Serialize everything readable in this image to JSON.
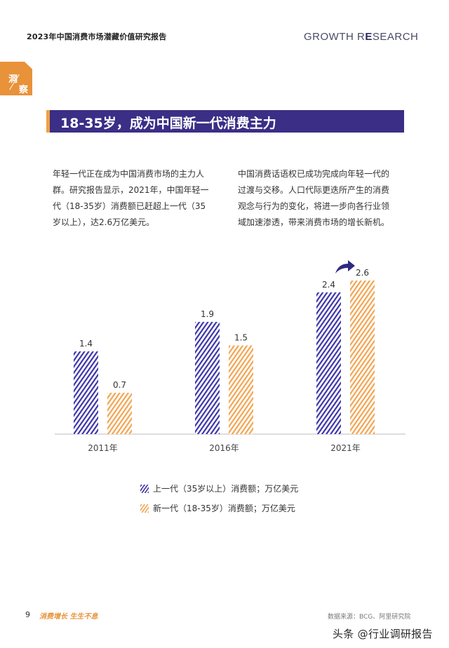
{
  "header": {
    "report_title": "2023年中国消费市场潜藏价值研究报告",
    "brand_part1": "GROWTH R",
    "brand_part2": "E",
    "brand_part3": "SEARCH"
  },
  "corner_tag": {
    "char_top": "洞",
    "char_bottom": "察",
    "color": "#e8923a"
  },
  "section": {
    "title": "18-35岁，成为中国新一代消费主力",
    "bar_color": "#3a2e86",
    "accent_color": "#f0a046"
  },
  "intro": {
    "left_lines": [
      "年轻一代正在成为中国消费市场的主力人",
      "群。研究报告显示，2021年，中国年轻一",
      "代（18-35岁）消费额已赶超上一代（35",
      "岁以上），达2.6万亿美元。"
    ],
    "right_lines": [
      "中国消费话语权已成功完成向年轻一代的",
      "过渡与交移。人口代际更迭所产生的消费",
      "观念与行为的变化，将进一步向各行业领",
      "域加速渗透，带来消费市场的增长新机。"
    ]
  },
  "chart_data": {
    "type": "bar",
    "categories": [
      "2011年",
      "2016年",
      "2021年"
    ],
    "series": [
      {
        "name": "上一代（35岁以上）消费额；万亿美元",
        "values": [
          1.4,
          1.9,
          2.4
        ],
        "color": "#3d35a8"
      },
      {
        "name": "新一代（18-35岁）消费额；万亿美元",
        "values": [
          0.7,
          1.5,
          2.6
        ],
        "color": "#f2a552"
      }
    ],
    "data_labels": [
      [
        "1.4",
        "1.9",
        "2.4"
      ],
      [
        "0.7",
        "1.5",
        "2.6"
      ]
    ],
    "ylim": [
      0,
      2.6
    ],
    "grid": false,
    "legend_position": "bottom",
    "annotation": "curved-up-arrow-icon"
  },
  "footer": {
    "page_number": "9",
    "slogan": "消费增长 生生不息",
    "source": "数据来源：BCG、阿里研究院",
    "watermark": "头条 @行业调研报告"
  }
}
